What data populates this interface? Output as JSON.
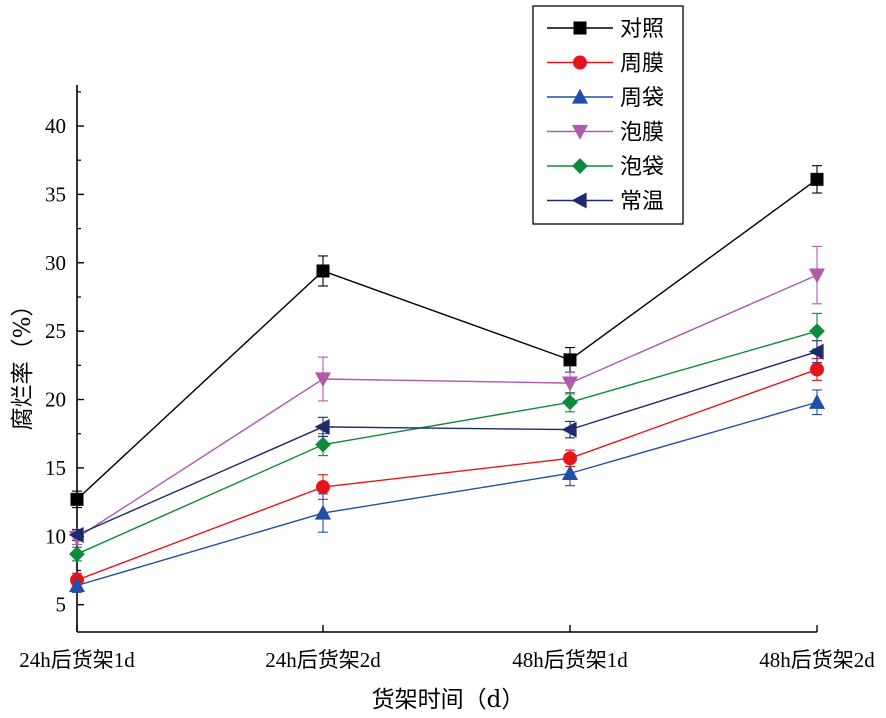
{
  "chart_data": {
    "type": "line",
    "title": "",
    "xlabel": "货架时间（d）",
    "ylabel": "腐烂率（%）",
    "ylim": [
      3,
      43
    ],
    "yticks": [
      5,
      10,
      15,
      20,
      25,
      30,
      35,
      40
    ],
    "ytick_labels": [
      "5",
      "10",
      "15",
      "20",
      "25",
      "30",
      "35",
      "40"
    ],
    "categories": [
      "24h后货架1d",
      "24h后货架2d",
      "48h后货架1d",
      "48h后货架2d"
    ],
    "legend_position": "top-right",
    "grid": false,
    "series": [
      {
        "name": "对照",
        "color": "#000000",
        "marker": "square",
        "values": [
          12.7,
          29.4,
          22.9,
          36.1
        ],
        "errors": [
          0.6,
          1.1,
          0.9,
          1.0
        ]
      },
      {
        "name": "周膜",
        "color": "#e8141c",
        "marker": "circle",
        "values": [
          6.8,
          13.6,
          15.7,
          22.2
        ],
        "errors": [
          0.5,
          0.9,
          0.6,
          0.8
        ]
      },
      {
        "name": "周袋",
        "color": "#1f4fa8",
        "marker": "triangle-up",
        "values": [
          6.4,
          11.7,
          14.6,
          19.8
        ],
        "errors": [
          0.5,
          1.4,
          0.9,
          0.9
        ]
      },
      {
        "name": "泡膜",
        "color": "#b05aac",
        "marker": "triangle-down",
        "values": [
          9.9,
          21.5,
          21.2,
          29.1
        ],
        "errors": [
          0.5,
          1.6,
          0.8,
          2.1
        ]
      },
      {
        "name": "泡袋",
        "color": "#0e8a3a",
        "marker": "diamond",
        "values": [
          8.7,
          16.7,
          19.8,
          25.0
        ],
        "errors": [
          0.5,
          0.8,
          0.7,
          1.3
        ]
      },
      {
        "name": "常温",
        "color": "#1c2a6e",
        "marker": "triangle-left",
        "values": [
          10.1,
          18.0,
          17.8,
          23.5
        ],
        "errors": [
          0.4,
          0.7,
          0.6,
          0.8
        ]
      }
    ]
  }
}
